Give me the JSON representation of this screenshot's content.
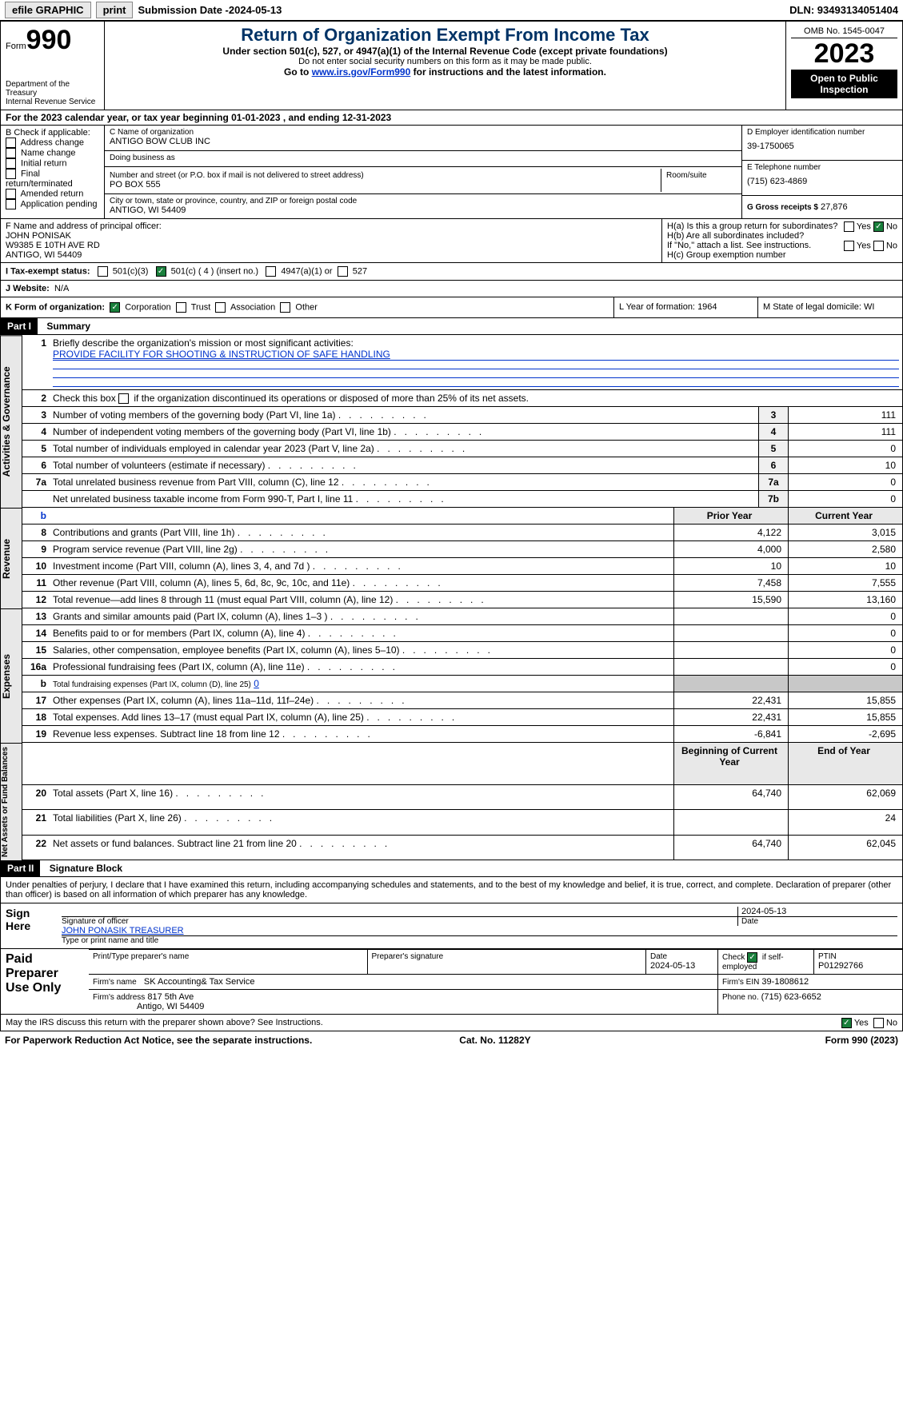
{
  "topbar": {
    "efile": "efile GRAPHIC",
    "print": "print",
    "sub_label": "Submission Date - ",
    "sub_date": "2024-05-13",
    "dln": "DLN: 93493134051404"
  },
  "hdr": {
    "form_word": "Form",
    "form_no": "990",
    "dept": "Department of the Treasury",
    "irs": "Internal Revenue Service",
    "service": "Service",
    "title": "Return of Organization Exempt From Income Tax",
    "sub": "Under section 501(c), 527, or 4947(a)(1) of the Internal Revenue Code (except private foundations)",
    "ssn": "Do not enter social security numbers on this form as it may be made public.",
    "goto_pre": "Go to ",
    "goto_link": "www.irs.gov/Form990",
    "goto_post": " for instructions and the latest information.",
    "omb": "OMB No. 1545-0047",
    "year": "2023",
    "open": "Open to Public Inspection"
  },
  "A": {
    "text": "For the 2023 calendar year, or tax year beginning 01-01-2023   , and ending 12-31-2023"
  },
  "B": {
    "label": "B Check if applicable:",
    "items": [
      "Address change",
      "Name change",
      "Initial return",
      "Final return/terminated",
      "Amended return",
      "Application pending"
    ]
  },
  "C": {
    "name_lbl": "C Name of organization",
    "name": "ANTIGO BOW CLUB INC",
    "dba_lbl": "Doing business as",
    "dba": "",
    "addr_lbl": "Number and street (or P.O. box if mail is not delivered to street address)",
    "room_lbl": "Room/suite",
    "addr": "PO BOX 555",
    "city_lbl": "City or town, state or province, country, and ZIP or foreign postal code",
    "city": "ANTIGO, WI  54409"
  },
  "D": {
    "lbl": "D Employer identification number",
    "val": "39-1750065"
  },
  "E": {
    "lbl": "E Telephone number",
    "val": "(715) 623-4869"
  },
  "G": {
    "lbl": "G Gross receipts $",
    "val": "27,876"
  },
  "F": {
    "lbl": "F  Name and address of principal officer:",
    "name": "JOHN PONISAK",
    "a1": "W9385 E 10TH AVE RD",
    "a2": "ANTIGO, WI  54409"
  },
  "H": {
    "a": "H(a)  Is this a group return for subordinates?",
    "yes": "Yes",
    "no": "No",
    "b": "H(b)  Are all subordinates included?",
    "bnote": "If \"No,\" attach a list. See instructions.",
    "c": "H(c)  Group exemption number"
  },
  "I": {
    "lbl": "I    Tax-exempt status:",
    "o1": "501(c)(3)",
    "o2": "501(c) ( 4 ) (insert no.)",
    "o3": "4947(a)(1) or",
    "o4": "527"
  },
  "J": {
    "lbl": "J    Website:",
    "val": "N/A"
  },
  "K": {
    "lbl": "K Form of organization:",
    "o1": "Corporation",
    "o2": "Trust",
    "o3": "Association",
    "o4": "Other"
  },
  "L": {
    "lbl": "L Year of formation:",
    "val": "1964"
  },
  "M": {
    "lbl": "M State of legal domicile:",
    "val": "WI"
  },
  "part1": {
    "hdr": "Part I",
    "title": "Summary"
  },
  "s1": {
    "l1": "Briefly describe the organization's mission or most significant activities:",
    "mission": "PROVIDE FACILITY FOR SHOOTING & INSTRUCTION OF SAFE HANDLING",
    "l2": "Check this box      if the organization discontinued its operations or disposed of more than 25% of its net assets.",
    "rows": [
      {
        "n": "3",
        "t": "Number of voting members of the governing body (Part VI, line 1a)",
        "b": "3",
        "v": "111"
      },
      {
        "n": "4",
        "t": "Number of independent voting members of the governing body (Part VI, line 1b)",
        "b": "4",
        "v": "111"
      },
      {
        "n": "5",
        "t": "Total number of individuals employed in calendar year 2023 (Part V, line 2a)",
        "b": "5",
        "v": "0"
      },
      {
        "n": "6",
        "t": "Total number of volunteers (estimate if necessary)",
        "b": "6",
        "v": "10"
      },
      {
        "n": "7a",
        "t": "Total unrelated business revenue from Part VIII, column (C), line 12",
        "b": "7a",
        "v": "0"
      },
      {
        "n": "",
        "t": "Net unrelated business taxable income from Form 990-T, Part I, line 11",
        "b": "7b",
        "v": "0"
      }
    ],
    "tab_ag": "Activities & Governance"
  },
  "rev": {
    "tab": "Revenue",
    "b": "b",
    "py": "Prior Year",
    "cy": "Current Year",
    "rows": [
      {
        "n": "8",
        "t": "Contributions and grants (Part VIII, line 1h)",
        "p": "4,122",
        "c": "3,015"
      },
      {
        "n": "9",
        "t": "Program service revenue (Part VIII, line 2g)",
        "p": "4,000",
        "c": "2,580"
      },
      {
        "n": "10",
        "t": "Investment income (Part VIII, column (A), lines 3, 4, and 7d )",
        "p": "10",
        "c": "10"
      },
      {
        "n": "11",
        "t": "Other revenue (Part VIII, column (A), lines 5, 6d, 8c, 9c, 10c, and 11e)",
        "p": "7,458",
        "c": "7,555"
      },
      {
        "n": "12",
        "t": "Total revenue—add lines 8 through 11 (must equal Part VIII, column (A), line 12)",
        "p": "15,590",
        "c": "13,160"
      }
    ]
  },
  "exp": {
    "tab": "Expenses",
    "rows": [
      {
        "n": "13",
        "t": "Grants and similar amounts paid (Part IX, column (A), lines 1–3 )",
        "p": "",
        "c": "0"
      },
      {
        "n": "14",
        "t": "Benefits paid to or for members (Part IX, column (A), line 4)",
        "p": "",
        "c": "0"
      },
      {
        "n": "15",
        "t": "Salaries, other compensation, employee benefits (Part IX, column (A), lines 5–10)",
        "p": "",
        "c": "0"
      },
      {
        "n": "16a",
        "t": "Professional fundraising fees (Part IX, column (A), line 11e)",
        "p": "",
        "c": "0"
      }
    ],
    "b": {
      "n": "b",
      "t": "Total fundraising expenses (Part IX, column (D), line 25)",
      "v": "0"
    },
    "rows2": [
      {
        "n": "17",
        "t": "Other expenses (Part IX, column (A), lines 11a–11d, 11f–24e)",
        "p": "22,431",
        "c": "15,855"
      },
      {
        "n": "18",
        "t": "Total expenses. Add lines 13–17 (must equal Part IX, column (A), line 25)",
        "p": "22,431",
        "c": "15,855"
      },
      {
        "n": "19",
        "t": "Revenue less expenses. Subtract line 18 from line 12",
        "p": "-6,841",
        "c": "-2,695"
      }
    ]
  },
  "na": {
    "tab": "Net Assets or Fund Balances",
    "by": "Beginning of Current Year",
    "ey": "End of Year",
    "rows": [
      {
        "n": "20",
        "t": "Total assets (Part X, line 16)",
        "p": "64,740",
        "c": "62,069"
      },
      {
        "n": "21",
        "t": "Total liabilities (Part X, line 26)",
        "p": "",
        "c": "24"
      },
      {
        "n": "22",
        "t": "Net assets or fund balances. Subtract line 21 from line 20",
        "p": "64,740",
        "c": "62,045"
      }
    ]
  },
  "part2": {
    "hdr": "Part II",
    "title": "Signature Block",
    "decl": "Under penalties of perjury, I declare that I have examined this return, including accompanying schedules and statements, and to the best of my knowledge and belief, it is true, correct, and complete. Declaration of preparer (other than officer) is based on all information of which preparer has any knowledge."
  },
  "sign": {
    "lbl": "Sign Here",
    "date": "2024-05-13",
    "sig_lbl": "Signature of officer",
    "date_lbl": "Date",
    "name": "JOHN PONASIK TREASURER",
    "type_lbl": "Type or print name and title"
  },
  "prep": {
    "lbl": "Paid Preparer Use Only",
    "h1": "Print/Type preparer's name",
    "h2": "Preparer's signature",
    "h3": "Date",
    "h4": "Check       if self-employed",
    "h5": "PTIN",
    "date": "2024-05-13",
    "ptin": "P01292766",
    "firm_lbl": "Firm's name",
    "firm": "SK Accounting& Tax Service",
    "ein_lbl": "Firm's EIN",
    "ein": "39-1808612",
    "addr_lbl": "Firm's address",
    "addr1": "817 5th Ave",
    "addr2": "Antigo, WI  54409",
    "ph_lbl": "Phone no.",
    "ph": "(715) 623-6652"
  },
  "discuss": {
    "t": "May the IRS discuss this return with the preparer shown above? See Instructions.",
    "yes": "Yes",
    "no": "No"
  },
  "ftr": {
    "l": "For Paperwork Reduction Act Notice, see the separate instructions.",
    "c": "Cat. No. 11282Y",
    "r": "Form 990 (2023)"
  }
}
